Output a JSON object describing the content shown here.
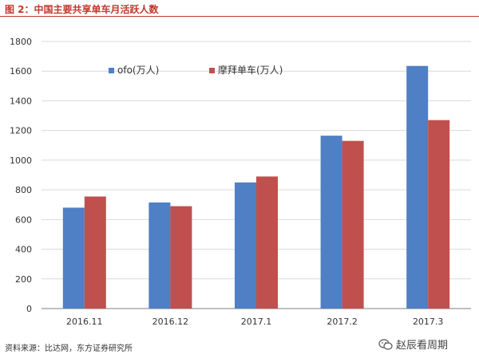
{
  "title": "图 2：中国主要共享单车月活跃人数",
  "source": "资料来源：比达网，东方证券研究所",
  "watermark": "赵辰看周期",
  "colors": {
    "title": "#c0392b",
    "ofo": "#4f7fc4",
    "mobike": "#c0504d",
    "grid": "#d9d9d9",
    "axis": "#7f7f7f"
  },
  "chart_data": {
    "type": "bar",
    "title": "图 2：中国主要共享单车月活跃人数",
    "xlabel": "",
    "ylabel": "",
    "categories": [
      "2016.11",
      "2016.12",
      "2017.1",
      "2017.2",
      "2017.3"
    ],
    "series": [
      {
        "name": "ofo(万人)",
        "color": "#4f7fc4",
        "values": [
          680,
          715,
          850,
          1165,
          1635
        ]
      },
      {
        "name": "摩拜单车(万人)",
        "color": "#c0504d",
        "values": [
          755,
          690,
          890,
          1130,
          1270
        ]
      }
    ],
    "ylim": [
      0,
      1800
    ],
    "yticks": [
      0,
      200,
      400,
      600,
      800,
      1000,
      1200,
      1400,
      1600,
      1800
    ],
    "grid": true,
    "legend_position": "top-left"
  }
}
